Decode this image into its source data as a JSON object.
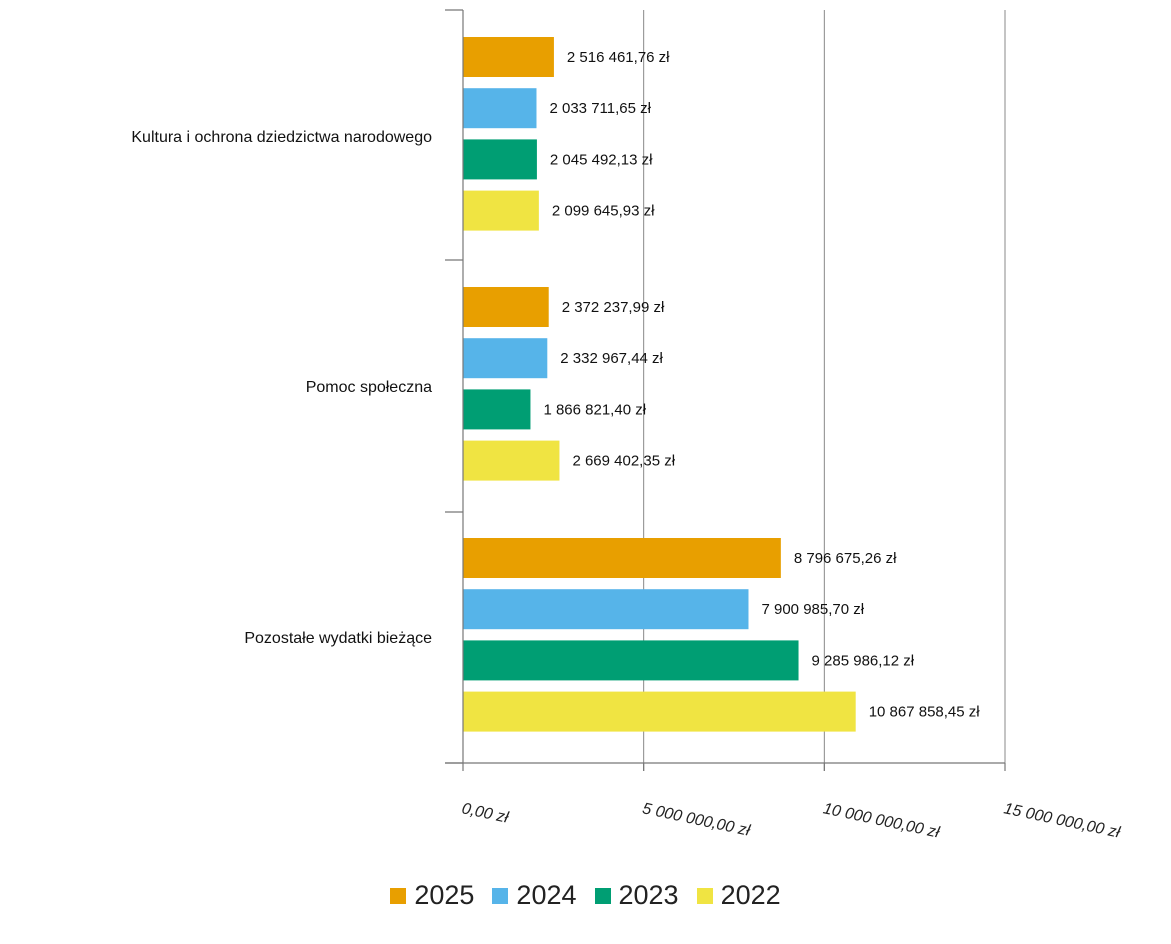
{
  "chart_data": {
    "type": "bar",
    "orientation": "horizontal",
    "categories": [
      "Kultura i ochrona dziedzictwa narodowego",
      "Pomoc społeczna",
      "Pozostałe wydatki bieżące"
    ],
    "series": [
      {
        "name": "2025",
        "color": "#E89F00",
        "values": [
          2516461.76,
          2372237.99,
          8796675.26
        ],
        "labels": [
          "2 516 461,76 zł",
          "2 372 237,99 zł",
          "8 796 675,26 zł"
        ]
      },
      {
        "name": "2024",
        "color": "#56B4E9",
        "values": [
          2033711.65,
          2332967.44,
          7900985.7
        ],
        "labels": [
          "2 033 711,65 zł",
          "2 332 967,44 zł",
          "7 900 985,70 zł"
        ]
      },
      {
        "name": "2023",
        "color": "#009E73",
        "values": [
          2045492.13,
          1866821.4,
          9285986.12
        ],
        "labels": [
          "2 045 492,13 zł",
          "1 866 821,40 zł",
          "9 285 986,12 zł"
        ]
      },
      {
        "name": "2022",
        "color": "#F0E442",
        "values": [
          2099645.93,
          2669402.35,
          10867858.45
        ],
        "labels": [
          "2 099 645,93 zł",
          "2 669 402,35 zł",
          "10 867 858,45 zł"
        ]
      }
    ],
    "xlim": [
      0,
      15000000
    ],
    "xticks": [
      0,
      5000000,
      10000000,
      15000000
    ],
    "xtick_labels": [
      "0,00 zł",
      "5 000 000,00 zł",
      "10 000 000,00 zł",
      "15 000 000,00 zł"
    ],
    "title": "",
    "xlabel": "",
    "ylabel": "",
    "grid": true,
    "legend_position": "bottom"
  }
}
